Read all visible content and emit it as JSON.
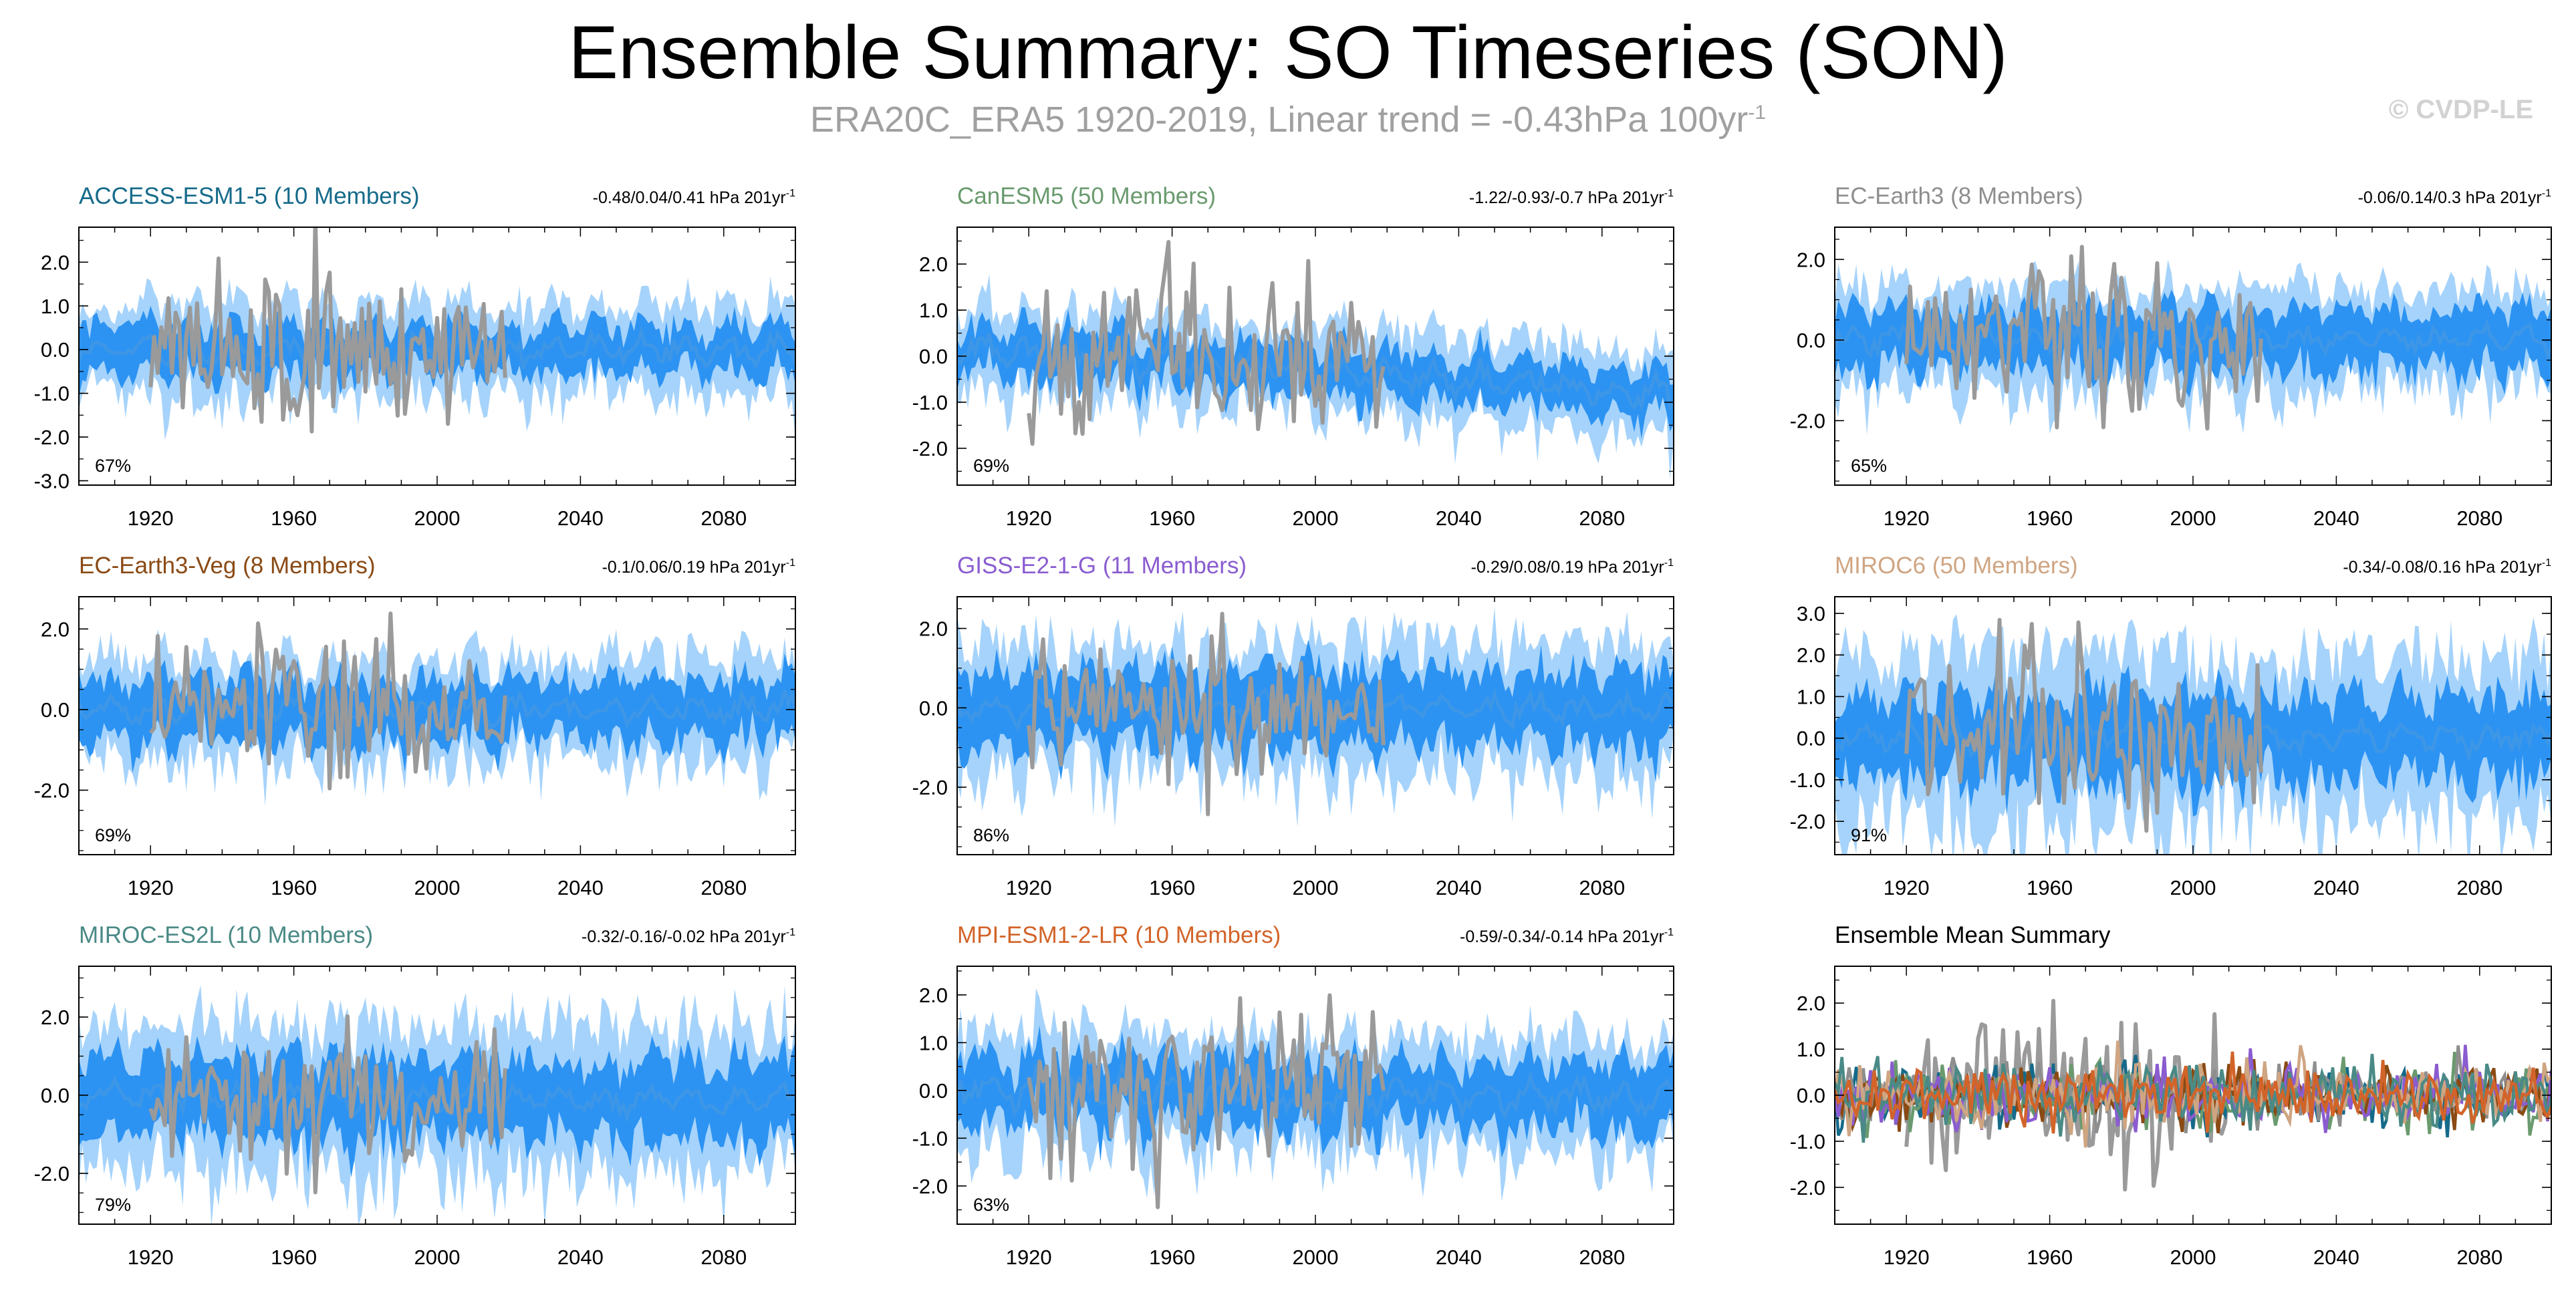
{
  "page": {
    "title": "Ensemble Summary: SO Timeseries (SON)",
    "subtitle_main": "ERA20C_ERA5 1920-2019, Linear trend = -0.43hPa 100yr",
    "subtitle_sup": "-1",
    "copyright": "© CVDP-LE"
  },
  "colors": {
    "obs": "#9a9a9a",
    "mean_line": "#3e96e6",
    "band_inner": "#2c93f2",
    "band_outer": "#a6d3fb"
  },
  "chart_data": [
    {
      "type": "area",
      "title": "ACCESS-ESM1-5 (10 Members)",
      "title_color": "#156a8a",
      "trend_label": "-0.48/0.04/0.41 hPa 201yr",
      "trend_sup": "-1",
      "percent": "67%",
      "xlim": [
        1900,
        2100
      ],
      "x_ticks": [
        1920,
        1960,
        2000,
        2040,
        2080
      ],
      "ylim": [
        -3.1,
        2.8
      ],
      "y_ticks": [
        2.0,
        1.0,
        0.0,
        -1.0,
        -2.0,
        -3.0
      ],
      "y_tick_labels": [
        "2.0",
        "1.0",
        "0.0",
        "-1.0",
        "-2.0",
        "-3.0"
      ],
      "model_range": [
        1900,
        2100
      ],
      "obs_range": [
        1920,
        2019
      ],
      "mean_trend": [
        0.0,
        0.0
      ],
      "band_inner": 0.55,
      "band_outer": 1.05,
      "obs_amp": 1.0,
      "seed": 11
    },
    {
      "type": "area",
      "title": "CanESM5 (50 Members)",
      "title_color": "#6a9a6e",
      "trend_label": "-1.22/-0.93/-0.7 hPa 201yr",
      "trend_sup": "-1",
      "percent": "69%",
      "xlim": [
        1900,
        2100
      ],
      "x_ticks": [
        1920,
        1960,
        2000,
        2040,
        2080
      ],
      "ylim": [
        -2.8,
        2.8
      ],
      "y_ticks": [
        2.0,
        1.0,
        0.0,
        -1.0,
        -2.0
      ],
      "y_tick_labels": [
        "2.0",
        "1.0",
        "0.0",
        "-1.0",
        "-2.0"
      ],
      "model_range": [
        1900,
        2100
      ],
      "obs_range": [
        1920,
        2019
      ],
      "mean_trend": [
        0.2,
        -0.85
      ],
      "band_inner": 0.5,
      "band_outer": 0.95,
      "obs_amp": 1.0,
      "seed": 23
    },
    {
      "type": "area",
      "title": "EC-Earth3 (8 Members)",
      "title_color": "#8e8e8e",
      "trend_label": "-0.06/0.14/0.3 hPa 201yr",
      "trend_sup": "-1",
      "percent": "65%",
      "xlim": [
        1900,
        2100
      ],
      "x_ticks": [
        1920,
        1960,
        2000,
        2040,
        2080
      ],
      "ylim": [
        -3.6,
        2.8
      ],
      "y_ticks": [
        2.0,
        0.0,
        -2.0
      ],
      "y_tick_labels": [
        "2.0",
        "0.0",
        "-2.0"
      ],
      "model_range": [
        1900,
        2100
      ],
      "obs_range": [
        1920,
        2019
      ],
      "mean_trend": [
        0.0,
        0.05
      ],
      "band_inner": 0.75,
      "band_outer": 1.3,
      "obs_amp": 1.0,
      "seed": 37
    },
    {
      "type": "area",
      "title": "EC-Earth3-Veg (8 Members)",
      "title_color": "#8a4a14",
      "trend_label": "-0.1/0.06/0.19 hPa 201yr",
      "trend_sup": "-1",
      "percent": "69%",
      "xlim": [
        1900,
        2100
      ],
      "x_ticks": [
        1920,
        1960,
        2000,
        2040,
        2080
      ],
      "ylim": [
        -3.6,
        2.8
      ],
      "y_ticks": [
        2.0,
        0.0,
        -2.0
      ],
      "y_tick_labels": [
        "2.0",
        "0.0",
        "-2.0"
      ],
      "model_range": [
        1900,
        2100
      ],
      "obs_range": [
        1920,
        2019
      ],
      "mean_trend": [
        0.0,
        0.0
      ],
      "band_inner": 0.75,
      "band_outer": 1.3,
      "obs_amp": 1.0,
      "seed": 41
    },
    {
      "type": "area",
      "title": "GISS-E2-1-G (11 Members)",
      "title_color": "#8a5cd0",
      "trend_label": "-0.29/0.08/0.19 hPa 201yr",
      "trend_sup": "-1",
      "percent": "86%",
      "xlim": [
        1900,
        2100
      ],
      "x_ticks": [
        1920,
        1960,
        2000,
        2040,
        2080
      ],
      "ylim": [
        -3.7,
        2.8
      ],
      "y_ticks": [
        2.0,
        0.0,
        -2.0
      ],
      "y_tick_labels": [
        "2.0",
        "0.0",
        "-2.0"
      ],
      "model_range": [
        1900,
        2100
      ],
      "obs_range": [
        1920,
        2019
      ],
      "mean_trend": [
        0.0,
        0.0
      ],
      "band_inner": 1.0,
      "band_outer": 1.7,
      "obs_amp": 1.0,
      "seed": 53
    },
    {
      "type": "area",
      "title": "MIROC6 (50 Members)",
      "title_color": "#cfa582",
      "trend_label": "-0.34/-0.08/0.16 hPa 201yr",
      "trend_sup": "-1",
      "percent": "91%",
      "xlim": [
        1900,
        2100
      ],
      "x_ticks": [
        1920,
        1960,
        2000,
        2040,
        2080
      ],
      "ylim": [
        -2.8,
        3.4
      ],
      "y_ticks": [
        3.0,
        2.0,
        1.0,
        0.0,
        -1.0,
        -2.0
      ],
      "y_tick_labels": [
        "3.0",
        "2.0",
        "1.0",
        "0.0",
        "-1.0",
        "-2.0"
      ],
      "model_range": [
        1900,
        2100
      ],
      "obs_range": [
        1920,
        2019
      ],
      "mean_trend": [
        0.0,
        0.0
      ],
      "band_inner": 1.05,
      "band_outer": 2.0,
      "obs_amp": 1.0,
      "seed": 67
    },
    {
      "type": "area",
      "title": "MIROC-ES2L (10 Members)",
      "title_color": "#4a8a86",
      "trend_label": "-0.32/-0.16/-0.02 hPa 201yr",
      "trend_sup": "-1",
      "percent": "79%",
      "xlim": [
        1900,
        2100
      ],
      "x_ticks": [
        1920,
        1960,
        2000,
        2040,
        2080
      ],
      "ylim": [
        -3.3,
        3.3
      ],
      "y_ticks": [
        2.0,
        0.0,
        -2.0
      ],
      "y_tick_labels": [
        "2.0",
        "0.0",
        "-2.0"
      ],
      "model_range": [
        1900,
        2100
      ],
      "obs_range": [
        1920,
        2019
      ],
      "mean_trend": [
        0.0,
        -0.15
      ],
      "band_inner": 1.0,
      "band_outer": 1.9,
      "obs_amp": 1.0,
      "seed": 79
    },
    {
      "type": "area",
      "title": "MPI-ESM1-2-LR (10 Members)",
      "title_color": "#d2642a",
      "trend_label": "-0.59/-0.34/-0.14 hPa 201yr",
      "trend_sup": "-1",
      "percent": "63%",
      "xlim": [
        1900,
        2100
      ],
      "x_ticks": [
        1920,
        1960,
        2000,
        2040,
        2080
      ],
      "ylim": [
        -2.8,
        2.6
      ],
      "y_ticks": [
        2.0,
        1.0,
        0.0,
        -1.0,
        -2.0
      ],
      "y_tick_labels": [
        "2.0",
        "1.0",
        "0.0",
        "-1.0",
        "-2.0"
      ],
      "model_range": [
        1900,
        2100
      ],
      "obs_range": [
        1920,
        2019
      ],
      "mean_trend": [
        0.05,
        -0.2
      ],
      "band_inner": 0.7,
      "band_outer": 1.25,
      "obs_amp": 1.0,
      "seed": 91
    },
    {
      "type": "line",
      "title": "Ensemble Mean Summary",
      "title_color": "#000000",
      "xlim": [
        1900,
        2100
      ],
      "x_ticks": [
        1920,
        1960,
        2000,
        2040,
        2080
      ],
      "ylim": [
        -2.8,
        2.8
      ],
      "y_ticks": [
        2.0,
        1.0,
        0.0,
        -1.0,
        -2.0
      ],
      "y_tick_labels": [
        "2.0",
        "1.0",
        "0.0",
        "-1.0",
        "-2.0"
      ],
      "obs_range": [
        1920,
        2019
      ],
      "series_colors": [
        "#156a8a",
        "#6a9a6e",
        "#8e8e8e",
        "#8a4a14",
        "#8a5cd0",
        "#cfa582",
        "#4a8a86",
        "#d2642a"
      ],
      "seed": 101
    }
  ]
}
